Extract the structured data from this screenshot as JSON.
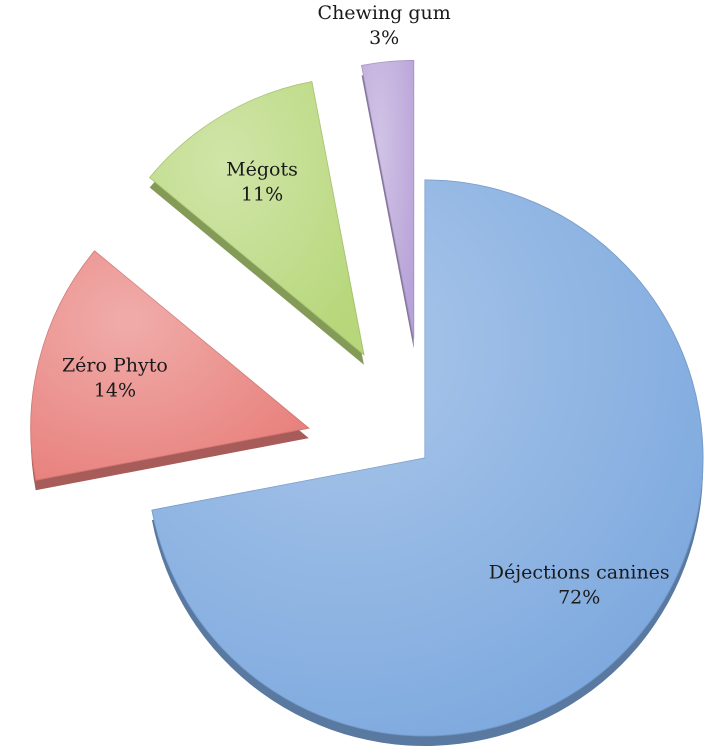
{
  "chart_data": {
    "type": "pie",
    "categories": [
      "Déjections canines",
      "Zéro Phyto",
      "Mégots",
      "Chewing gum"
    ],
    "values": [
      72,
      14,
      11,
      3
    ],
    "value_labels": [
      "72%",
      "14%",
      "11%",
      "3%"
    ],
    "colors": [
      "#7ca8de",
      "#e8807c",
      "#b7d77a",
      "#b8a3d8"
    ],
    "exploded": [
      false,
      true,
      true,
      true
    ]
  }
}
